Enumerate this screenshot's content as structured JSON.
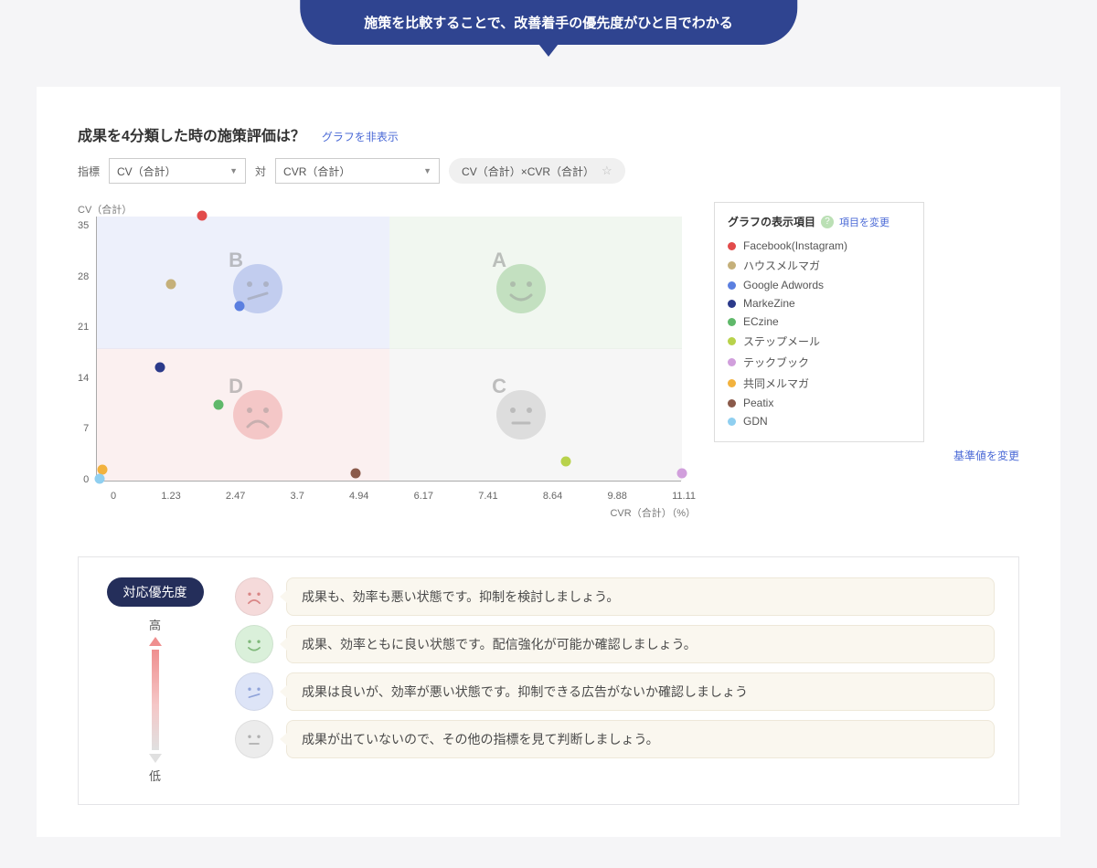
{
  "banner": "施策を比較することで、改善着手の優先度がひと目でわかる",
  "card": {
    "title": "成果を4分類した時の施策評価は？",
    "hide_graph": "グラフを非表示",
    "controls": {
      "metric_label": "指標",
      "select1": "CV（合計）",
      "vs": "対",
      "select2": "CVR（合計）",
      "chip": "CV（合計）×CVR（合計）"
    }
  },
  "chart": {
    "type": "scatter",
    "ylabel": "CV（合計）",
    "xlabel": "CVR（合計）（%）",
    "ylim": [
      0,
      35
    ],
    "yticks": [
      0,
      7,
      14,
      21,
      28,
      35
    ],
    "xlim": [
      0,
      11.11
    ],
    "xticks": [
      0,
      1.23,
      2.47,
      3.7,
      4.94,
      6.17,
      7.41,
      8.64,
      9.88,
      11.11
    ],
    "x_split": 5.55,
    "y_split": 17.5,
    "quad_colors": {
      "A": "#dbecd9",
      "B": "#d3daf4",
      "C": "#e8e8e8",
      "D": "#f4dada"
    },
    "face_colors": {
      "A": "#9fcf9a",
      "B": "#9fb2e6",
      "C": "#c9c9c9",
      "D": "#f0a6a6"
    },
    "series": [
      {
        "label": "Facebook(Instagram)",
        "color": "#e24b4b",
        "x": 2.0,
        "y": 35
      },
      {
        "label": "ハウスメルマガ",
        "color": "#c5b07a",
        "x": 1.4,
        "y": 26
      },
      {
        "label": "Google Adwords",
        "color": "#5b7fe0",
        "x": 2.7,
        "y": 23
      },
      {
        "label": "MarkeZine",
        "color": "#2b3a8a",
        "x": 1.2,
        "y": 15
      },
      {
        "label": "ECzine",
        "color": "#5fb86a",
        "x": 2.3,
        "y": 10
      },
      {
        "label": "ステップメール",
        "color": "#b8d24b",
        "x": 8.9,
        "y": 2.5
      },
      {
        "label": "テックブック",
        "color": "#d19fdc",
        "x": 11.11,
        "y": 1
      },
      {
        "label": "共同メルマガ",
        "color": "#f2b23e",
        "x": 0.1,
        "y": 1.5
      },
      {
        "label": "Peatix",
        "color": "#8a5a4a",
        "x": 4.9,
        "y": 1
      },
      {
        "label": "GDN",
        "color": "#8fcff0",
        "x": 0.05,
        "y": 0.3
      }
    ],
    "baseline_link": "基準値を変更"
  },
  "legend": {
    "title": "グラフの表示項目",
    "change": "項目を変更"
  },
  "guidance": {
    "priority_label": "対応優先度",
    "high": "高",
    "low": "低",
    "rows": [
      {
        "face": "sad",
        "color": "#f5dada",
        "stroke": "#d98585",
        "text": "成果も、効率も悪い状態です。抑制を検討しましょう。"
      },
      {
        "face": "happy",
        "color": "#daf0da",
        "stroke": "#7fb87a",
        "text": "成果、効率ともに良い状態です。配信強化が可能か確認しましょう。"
      },
      {
        "face": "slanted",
        "color": "#dde4f7",
        "stroke": "#8fa3d9",
        "text": "成果は良いが、効率が悪い状態です。抑制できる広告がないか確認しましょう"
      },
      {
        "face": "neutral",
        "color": "#ececec",
        "stroke": "#b0b0b0",
        "text": "成果が出ていないので、その他の指標を見て判断しましょう。"
      }
    ]
  }
}
